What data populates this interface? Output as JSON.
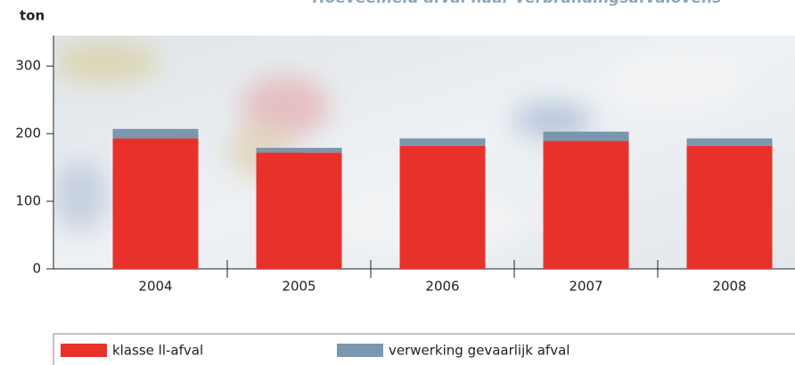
{
  "chart_data": {
    "type": "stacked_bar",
    "title": "Hoeveelheid afval naar verbrandingsafvalovens",
    "y_label": "ton",
    "categories": [
      "2004",
      "2005",
      "2006",
      "2007",
      "2008"
    ],
    "series": [
      {
        "name": "klasse ll-afval",
        "color": "#e8312a",
        "values": [
          193,
          172,
          182,
          189,
          182
        ]
      },
      {
        "name": "verwerking gevaarlijk afval",
        "color": "#7a97ae",
        "values": [
          14,
          7,
          11,
          14,
          11
        ]
      }
    ],
    "ylim": [
      0,
      345
    ],
    "yticks": [
      0,
      100,
      200,
      300
    ],
    "grid": false
  }
}
